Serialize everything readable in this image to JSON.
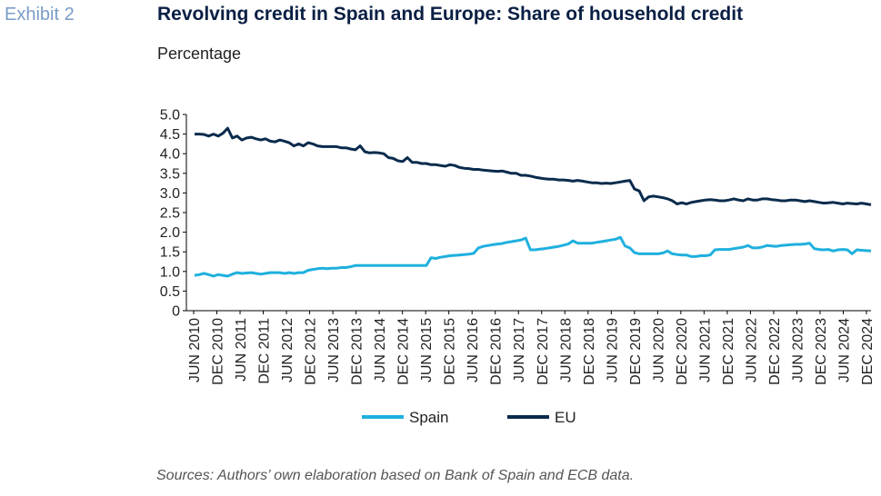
{
  "exhibit_label": "Exhibit 2",
  "title": "Revolving credit in Spain and Europe: Share of household credit",
  "subtitle": "Percentage",
  "sources": "Sources: Authors’ own elaboration based on Bank of Spain and ECB data.",
  "colors": {
    "spain": "#1fb0de",
    "eu": "#0a2b4c",
    "axis": "#000000"
  },
  "chart_data": {
    "type": "line",
    "ylim": [
      0,
      5
    ],
    "yticks": [
      "0",
      "0.5",
      "1.0",
      "1.5",
      "2.0",
      "2.5",
      "3.0",
      "3.5",
      "4.0",
      "4.5",
      "5.0"
    ],
    "x_labels": [
      "JUN 2010",
      "DEC 2010",
      "JUN 2011",
      "DEC 2011",
      "JUN 2012",
      "DEC 2012",
      "JUN 2013",
      "DEC 2013",
      "JUN 2014",
      "DEC 2014",
      "JUN 2015",
      "DEC 2015",
      "JUN 2016",
      "DEC 2016",
      "JUN 2017",
      "DEC 2017",
      "JUN 2018",
      "DEC 2018",
      "JUN 2019",
      "DEC 2019",
      "JUN 2020",
      "DEC 2020",
      "JUN 2021",
      "DEC 2021",
      "JUN 2022",
      "DEC 2022",
      "JUN 2023",
      "DEC 2023",
      "JUN 2024",
      "DEC 2024"
    ],
    "legend_position": "bottom",
    "series": [
      {
        "name": "Spain",
        "values": [
          0.9,
          0.92,
          0.95,
          0.92,
          0.88,
          0.92,
          0.9,
          0.88,
          0.93,
          0.97,
          0.95,
          0.96,
          0.97,
          0.95,
          0.93,
          0.95,
          0.97,
          0.97,
          0.97,
          0.95,
          0.97,
          0.95,
          0.97,
          0.97,
          1.03,
          1.05,
          1.07,
          1.08,
          1.07,
          1.08,
          1.08,
          1.1,
          1.1,
          1.12,
          1.15,
          1.15,
          1.15,
          1.15,
          1.15,
          1.15,
          1.15,
          1.15,
          1.15,
          1.15,
          1.15,
          1.15,
          1.15,
          1.15,
          1.15,
          1.15,
          1.35,
          1.33,
          1.36,
          1.38,
          1.4,
          1.41,
          1.42,
          1.43,
          1.44,
          1.46,
          1.6,
          1.64,
          1.66,
          1.68,
          1.7,
          1.71,
          1.74,
          1.76,
          1.78,
          1.8,
          1.85,
          1.55,
          1.55,
          1.57,
          1.58,
          1.6,
          1.62,
          1.64,
          1.67,
          1.7,
          1.78,
          1.72,
          1.72,
          1.72,
          1.72,
          1.74,
          1.76,
          1.78,
          1.8,
          1.82,
          1.87,
          1.65,
          1.6,
          1.48,
          1.45,
          1.45,
          1.45,
          1.45,
          1.45,
          1.47,
          1.52,
          1.45,
          1.43,
          1.42,
          1.42,
          1.38,
          1.38,
          1.4,
          1.4,
          1.42,
          1.55,
          1.56,
          1.56,
          1.56,
          1.58,
          1.6,
          1.62,
          1.66,
          1.6,
          1.6,
          1.62,
          1.66,
          1.65,
          1.64,
          1.66,
          1.67,
          1.68,
          1.69,
          1.69,
          1.7,
          1.72,
          1.58,
          1.56,
          1.55,
          1.56,
          1.52,
          1.55,
          1.56,
          1.55,
          1.45,
          1.55,
          1.54,
          1.53,
          1.52
        ]
      },
      {
        "name": "EU",
        "values": [
          4.5,
          4.5,
          4.49,
          4.45,
          4.5,
          4.45,
          4.52,
          4.65,
          4.4,
          4.45,
          4.35,
          4.4,
          4.42,
          4.38,
          4.35,
          4.38,
          4.32,
          4.3,
          4.35,
          4.32,
          4.28,
          4.2,
          4.25,
          4.2,
          4.28,
          4.25,
          4.2,
          4.18,
          4.18,
          4.18,
          4.18,
          4.15,
          4.15,
          4.12,
          4.1,
          4.2,
          4.05,
          4.02,
          4.03,
          4.02,
          4.0,
          3.9,
          3.88,
          3.82,
          3.8,
          3.9,
          3.78,
          3.78,
          3.75,
          3.75,
          3.72,
          3.72,
          3.7,
          3.68,
          3.72,
          3.7,
          3.65,
          3.63,
          3.62,
          3.6,
          3.6,
          3.58,
          3.57,
          3.56,
          3.55,
          3.56,
          3.53,
          3.5,
          3.5,
          3.45,
          3.45,
          3.43,
          3.4,
          3.38,
          3.36,
          3.35,
          3.35,
          3.33,
          3.33,
          3.32,
          3.3,
          3.32,
          3.3,
          3.28,
          3.26,
          3.26,
          3.24,
          3.25,
          3.24,
          3.26,
          3.28,
          3.3,
          3.32,
          3.1,
          3.05,
          2.8,
          2.9,
          2.92,
          2.9,
          2.88,
          2.85,
          2.8,
          2.72,
          2.75,
          2.72,
          2.76,
          2.78,
          2.8,
          2.82,
          2.83,
          2.82,
          2.8,
          2.8,
          2.82,
          2.85,
          2.82,
          2.8,
          2.85,
          2.82,
          2.82,
          2.85,
          2.85,
          2.83,
          2.82,
          2.8,
          2.8,
          2.82,
          2.82,
          2.8,
          2.78,
          2.8,
          2.78,
          2.76,
          2.74,
          2.75,
          2.76,
          2.74,
          2.72,
          2.74,
          2.73,
          2.72,
          2.74,
          2.72,
          2.7
        ]
      }
    ]
  }
}
